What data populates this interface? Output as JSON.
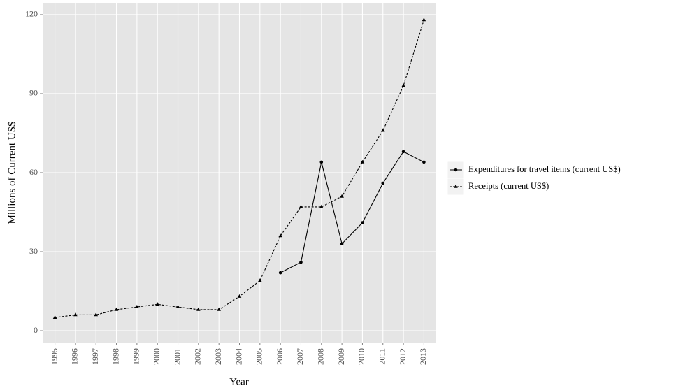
{
  "chart_data": {
    "type": "line",
    "x_label": "Year",
    "y_label": "Millions of Current US$",
    "categories": [
      "1995",
      "1996",
      "1997",
      "1998",
      "1999",
      "2000",
      "2001",
      "2002",
      "2003",
      "2004",
      "2005",
      "2006",
      "2007",
      "2008",
      "2009",
      "2010",
      "2011",
      "2012",
      "2013"
    ],
    "series": [
      {
        "name": "Expenditures for travel items (current US$)",
        "color": "#000000",
        "line_style": "solid",
        "marker": "circle",
        "values": [
          null,
          null,
          null,
          null,
          null,
          null,
          null,
          null,
          null,
          null,
          null,
          22,
          26,
          64,
          33,
          41,
          56,
          68,
          64
        ]
      },
      {
        "name": "Receipts (current US$)",
        "color": "#000000",
        "line_style": "dashed",
        "marker": "triangle",
        "values": [
          5,
          6,
          6,
          8,
          9,
          10,
          9,
          8,
          8,
          13,
          19,
          36,
          47,
          47,
          51,
          64,
          76,
          93,
          118
        ]
      }
    ],
    "ylim": [
      -4.5,
      124.5
    ],
    "yticks": [
      0,
      30,
      60,
      90,
      120
    ],
    "grid": true,
    "legend_position": "right"
  }
}
